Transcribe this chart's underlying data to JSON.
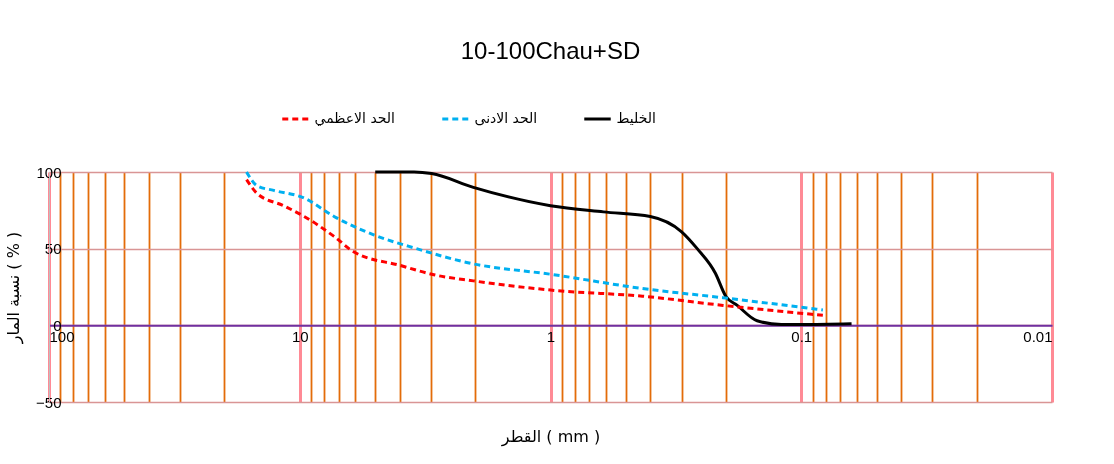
{
  "chart_data": {
    "type": "line",
    "title": "10-100Chau+SD",
    "xlabel": "القطر ( mm )",
    "ylabel": "نسبة المار ( % )",
    "log": "x",
    "xlim": [
      100,
      0.01
    ],
    "ylim": [
      -50,
      100
    ],
    "yticks": [
      -50,
      0,
      50,
      100
    ],
    "xticks": [
      100,
      10,
      1,
      0.1,
      0.01,
      {
        "value": 90,
        "label": null
      },
      {
        "value": 80,
        "label": null
      },
      {
        "value": 70,
        "label": null
      },
      {
        "value": 60,
        "label": null
      },
      {
        "value": 50,
        "label": null
      },
      {
        "value": 40,
        "label": null
      },
      {
        "value": 30,
        "label": null
      },
      {
        "value": 20,
        "label": null
      },
      {
        "value": 9,
        "label": null
      },
      {
        "value": 8,
        "label": null
      },
      {
        "value": 7,
        "label": null
      },
      {
        "value": 6,
        "label": null
      },
      {
        "value": 5,
        "label": null
      },
      {
        "value": 4,
        "label": null
      },
      {
        "value": 3,
        "label": null
      },
      {
        "value": 2,
        "label": null
      },
      {
        "value": 0.9,
        "label": null
      },
      {
        "value": 0.8,
        "label": null
      },
      {
        "value": 0.7,
        "label": null
      },
      {
        "value": 0.6,
        "label": null
      },
      {
        "value": 0.5,
        "label": null
      },
      {
        "value": 0.4,
        "label": null
      },
      {
        "value": 0.3,
        "label": null
      },
      {
        "value": 0.2,
        "label": null
      },
      {
        "value": 0.09,
        "label": null
      },
      {
        "value": 0.08,
        "label": null
      },
      {
        "value": 0.07,
        "label": null
      },
      {
        "value": 0.06,
        "label": null
      },
      {
        "value": 0.05,
        "label": null
      },
      {
        "value": 0.04,
        "label": null
      },
      {
        "value": 0.03,
        "label": null
      },
      {
        "value": 0.02,
        "label": null
      }
    ],
    "grid": true,
    "legend": "top",
    "series": [
      {
        "name": "الخليط",
        "color": "#000000",
        "line_style": "solid",
        "x": [
          5.0,
          3.5,
          2.98,
          2.03,
          1.0,
          0.615,
          0.4,
          0.3,
          0.26,
          0.22,
          0.2,
          0.18,
          0.15,
          0.12,
          0.1,
          0.063
        ],
        "values": [
          100,
          100,
          99,
          90,
          78,
          74,
          71,
          61,
          50,
          34,
          19,
          13,
          3,
          0.5,
          0.5,
          1
        ]
      },
      {
        "name": "الحد الادنى",
        "color": "#00b0f0",
        "line_style": "dashed",
        "x": [
          16.3,
          14.8,
          12.7,
          9.6,
          7.3,
          5.07,
          3.42,
          2.16,
          0.97,
          0.43,
          0.205,
          0.082
        ],
        "values": [
          100,
          91,
          88,
          83,
          71,
          59,
          50,
          41,
          33,
          24,
          18,
          10
        ]
      },
      {
        "name": "الحد الاعظمي",
        "color": "#ff0000",
        "line_style": "dashed",
        "x": [
          16.3,
          14.8,
          11.6,
          9.6,
          7.3,
          6.1,
          3.96,
          2.92,
          2.03,
          1.0,
          0.43,
          0.205,
          0.082
        ],
        "values": [
          95,
          86,
          78,
          71,
          58,
          48,
          39,
          33,
          29,
          23,
          19,
          13,
          6.5
        ]
      }
    ]
  }
}
